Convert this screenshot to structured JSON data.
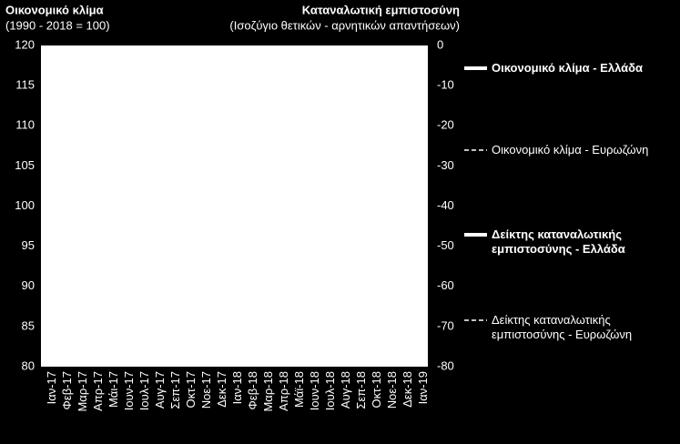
{
  "chart_data": {
    "type": "line",
    "title": "Οικονομικό κλίμα",
    "subtitle": "(1990 - 2018 = 100)",
    "y2_title": "Καταναλωτική εμπιστοσύνη",
    "y2_subtitle": "(Ισοζύγιο θετικών - αρνητικών απαντήσεων)",
    "categories": [
      "Ιαν-17",
      "Φεβ-17",
      "Μαρ-17",
      "Απρ-17",
      "Μάι-17",
      "Ιουν-17",
      "Ιουλ-17",
      "Αυγ-17",
      "Σεπ-17",
      "Οκτ-17",
      "Νοε-17",
      "Δεκ-17",
      "Ιαν-18",
      "Φεβ-18",
      "Μαρ-18",
      "Απρ-18",
      "Μάϊ-18",
      "Ιουν-18",
      "Ιουλ-18",
      "Αυγ-18",
      "Σεπ-18",
      "Οκτ-18",
      "Νοε-18",
      "Δεκ-18",
      "Ιαν-19"
    ],
    "ylim": [
      80,
      120
    ],
    "yticks": [
      80,
      85,
      90,
      95,
      100,
      105,
      110,
      115,
      120
    ],
    "y2lim": [
      -80,
      0
    ],
    "y2ticks": [
      -80,
      -70,
      -60,
      -50,
      -40,
      -30,
      -20,
      -10,
      0
    ],
    "legend": "right",
    "series": [
      {
        "name": "Οικονομικό κλίμα - Ελλάδα",
        "color": "#ffffff",
        "dash": false,
        "axis": "y",
        "values": [
          null,
          null,
          null,
          null,
          null,
          null,
          null,
          null,
          null,
          null,
          null,
          null,
          null,
          null,
          null,
          null,
          null,
          null,
          null,
          null,
          null,
          null,
          null,
          null,
          null
        ]
      },
      {
        "name": "Οικονομικό κλίμα - Ευρωζώνη",
        "color": "#ffffff",
        "dash": true,
        "axis": "y",
        "values": [
          null,
          null,
          null,
          null,
          null,
          null,
          null,
          null,
          null,
          null,
          null,
          null,
          null,
          null,
          null,
          null,
          null,
          null,
          null,
          null,
          null,
          null,
          null,
          null,
          null
        ]
      },
      {
        "name": "Δείκτης καταναλωτικής εμπιστοσύνης - Ελλάδα",
        "color": "#ffffff",
        "dash": false,
        "axis": "y2",
        "values": [
          null,
          null,
          null,
          null,
          null,
          null,
          null,
          null,
          null,
          null,
          null,
          null,
          null,
          null,
          null,
          null,
          null,
          null,
          null,
          null,
          null,
          null,
          null,
          null,
          null
        ]
      },
      {
        "name": "Δείκτης καταναλωτικής εμπιστοσύνης - Ευρωζώνη",
        "color": "#ffffff",
        "dash": true,
        "axis": "y2",
        "values": [
          null,
          null,
          null,
          null,
          null,
          null,
          null,
          null,
          null,
          null,
          null,
          null,
          null,
          null,
          null,
          null,
          null,
          null,
          null,
          null,
          null,
          null,
          null,
          null,
          null
        ]
      }
    ]
  }
}
